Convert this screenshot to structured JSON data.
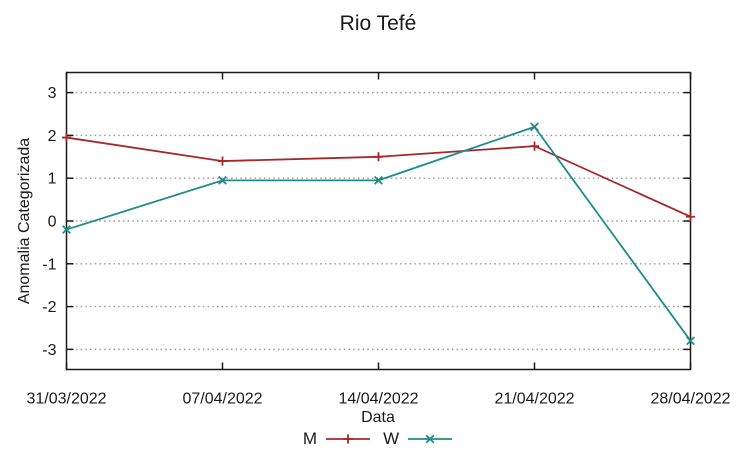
{
  "chart_data": {
    "type": "line",
    "title": "Rio Tefé",
    "xlabel": "Data",
    "ylabel": "Anomalia Categorizada",
    "categories": [
      "31/03/2022",
      "07/04/2022",
      "14/04/2022",
      "21/04/2022",
      "28/04/2022"
    ],
    "series": [
      {
        "name": "M",
        "marker": "plus",
        "color": "#a52828",
        "values": [
          1.95,
          1.4,
          1.5,
          1.75,
          0.1
        ]
      },
      {
        "name": "W",
        "marker": "x",
        "color": "#1f8c8c",
        "values": [
          -0.2,
          0.95,
          0.95,
          2.2,
          -2.8
        ]
      }
    ],
    "yticks": [
      -3,
      -2,
      -1,
      0,
      1,
      2,
      3
    ],
    "ylim": [
      -3.47,
      3.47
    ],
    "grid": "dotted-horizontal",
    "legend_position": "bottom-center",
    "colors": {
      "border": "#1a1a1a",
      "gridline": "#999999",
      "text": "#1a1a1a",
      "background": "#ffffff"
    }
  }
}
